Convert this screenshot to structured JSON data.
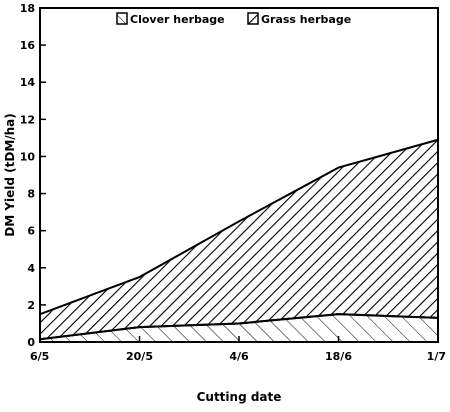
{
  "chart_data": {
    "type": "area",
    "title": "",
    "xlabel": "Cutting date",
    "ylabel": "DM Yield (tDM/ha)",
    "categories": [
      "6/5",
      "20/5",
      "4/6",
      "18/6",
      "1/7"
    ],
    "yticks": [
      0,
      2,
      4,
      6,
      8,
      10,
      12,
      14,
      16,
      18
    ],
    "ylim": [
      0,
      18
    ],
    "stacked": true,
    "legend_position": "top",
    "series": [
      {
        "name": "Clover herbage",
        "values": [
          0.15,
          0.8,
          1.0,
          1.5,
          1.3
        ]
      },
      {
        "name": "Grass herbage",
        "values": [
          1.35,
          2.7,
          5.5,
          7.9,
          9.6
        ]
      }
    ],
    "colors": {
      "stroke": "#000000",
      "background": "#ffffff"
    }
  }
}
